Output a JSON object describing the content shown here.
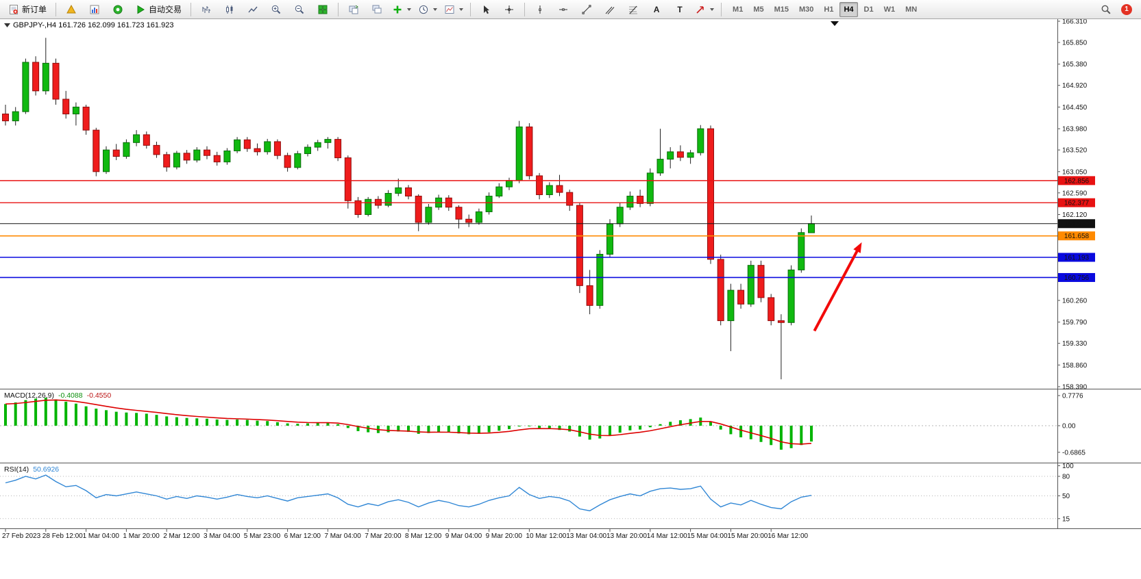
{
  "toolbar": {
    "new_order": "新订单",
    "autotrade": "自动交易",
    "text_tool": "A",
    "label_tool": "T",
    "timeframes": [
      "M1",
      "M5",
      "M15",
      "M30",
      "H1",
      "H4",
      "D1",
      "W1",
      "MN"
    ],
    "active_timeframe": "H4",
    "notification_count": "1"
  },
  "chart": {
    "symbol_line": "GBPJPY-,H4 161.726 162.099 161.723 161.923"
  },
  "colors": {
    "up": "#10b910",
    "up_border": "#0b6b0b",
    "down": "#ef1c1c",
    "down_border": "#8f0d0d",
    "wick": "#222222",
    "macd_hist": "#00b400",
    "macd_signal": "#dd0000",
    "rsi_line": "#2f86d5",
    "badge_text": "#ffffff",
    "arrow": "#f20a0a"
  },
  "chart_data": {
    "type": "candlestick",
    "symbol": "GBPJPY-",
    "timeframe": "H4",
    "current_ohlc": {
      "open": 161.726,
      "high": 162.099,
      "low": 161.723,
      "close": 161.923
    },
    "price_axis": {
      "min": 158.39,
      "max": 166.31,
      "tick_labels": [
        "166.310",
        "165.850",
        "165.380",
        "164.920",
        "164.450",
        "163.980",
        "163.520",
        "163.050",
        "162.590",
        "162.120",
        "160.260",
        "159.790",
        "159.330",
        "158.860",
        "158.390"
      ]
    },
    "time_labels": [
      "27 Feb 2023",
      "28 Feb 12:00",
      "1 Mar 04:00",
      "1 Mar 20:00",
      "2 Mar 12:00",
      "3 Mar 04:00",
      "5 Mar 23:00",
      "6 Mar 12:00",
      "7 Mar 04:00",
      "7 Mar 20:00",
      "8 Mar 12:00",
      "9 Mar 04:00",
      "9 Mar 20:00",
      "10 Mar 12:00",
      "13 Mar 04:00",
      "13 Mar 20:00",
      "14 Mar 12:00",
      "15 Mar 04:00",
      "15 Mar 20:00",
      "16 Mar 12:00"
    ],
    "candles": [
      [
        164.3,
        164.5,
        164.05,
        164.15
      ],
      [
        164.15,
        164.45,
        164.05,
        164.35
      ],
      [
        164.35,
        165.5,
        164.3,
        165.42
      ],
      [
        165.42,
        165.55,
        164.7,
        164.8
      ],
      [
        164.8,
        165.95,
        164.72,
        165.4
      ],
      [
        165.4,
        165.5,
        164.5,
        164.62
      ],
      [
        164.62,
        164.8,
        164.2,
        164.3
      ],
      [
        164.3,
        164.55,
        164.05,
        164.45
      ],
      [
        164.45,
        164.5,
        163.85,
        163.95
      ],
      [
        163.95,
        164.0,
        162.95,
        163.05
      ],
      [
        163.05,
        163.6,
        163.0,
        163.52
      ],
      [
        163.52,
        163.65,
        163.3,
        163.38
      ],
      [
        163.38,
        163.75,
        163.33,
        163.68
      ],
      [
        163.68,
        163.95,
        163.6,
        163.85
      ],
      [
        163.85,
        163.92,
        163.55,
        163.62
      ],
      [
        163.62,
        163.7,
        163.35,
        163.42
      ],
      [
        163.42,
        163.48,
        163.05,
        163.15
      ],
      [
        163.15,
        163.5,
        163.1,
        163.45
      ],
      [
        163.45,
        163.52,
        163.22,
        163.3
      ],
      [
        163.3,
        163.58,
        163.25,
        163.52
      ],
      [
        163.52,
        163.6,
        163.32,
        163.4
      ],
      [
        163.4,
        163.48,
        163.18,
        163.26
      ],
      [
        163.26,
        163.56,
        163.2,
        163.5
      ],
      [
        163.5,
        163.8,
        163.45,
        163.74
      ],
      [
        163.74,
        163.8,
        163.48,
        163.55
      ],
      [
        163.55,
        163.66,
        163.4,
        163.48
      ],
      [
        163.48,
        163.76,
        163.42,
        163.7
      ],
      [
        163.7,
        163.75,
        163.32,
        163.4
      ],
      [
        163.4,
        163.46,
        163.05,
        163.14
      ],
      [
        163.14,
        163.5,
        163.1,
        163.44
      ],
      [
        163.44,
        163.64,
        163.38,
        163.58
      ],
      [
        163.58,
        163.74,
        163.5,
        163.68
      ],
      [
        163.68,
        163.8,
        163.55,
        163.75
      ],
      [
        163.75,
        163.8,
        163.28,
        163.35
      ],
      [
        163.35,
        163.4,
        162.25,
        162.42
      ],
      [
        162.42,
        162.5,
        162.05,
        162.12
      ],
      [
        162.12,
        162.5,
        162.08,
        162.45
      ],
      [
        162.45,
        162.52,
        162.25,
        162.32
      ],
      [
        162.32,
        162.65,
        162.28,
        162.58
      ],
      [
        162.58,
        162.9,
        162.52,
        162.7
      ],
      [
        162.7,
        162.76,
        162.45,
        162.52
      ],
      [
        162.52,
        162.56,
        161.76,
        161.95
      ],
      [
        161.95,
        162.35,
        161.9,
        162.28
      ],
      [
        162.28,
        162.55,
        162.22,
        162.48
      ],
      [
        162.48,
        162.54,
        162.2,
        162.28
      ],
      [
        162.28,
        162.32,
        161.82,
        162.02
      ],
      [
        162.02,
        162.12,
        161.85,
        161.95
      ],
      [
        161.95,
        162.25,
        161.9,
        162.18
      ],
      [
        162.18,
        162.6,
        162.12,
        162.52
      ],
      [
        162.52,
        162.8,
        162.48,
        162.72
      ],
      [
        162.72,
        162.92,
        162.65,
        162.86
      ],
      [
        162.86,
        164.15,
        162.8,
        164.02
      ],
      [
        164.02,
        164.1,
        162.88,
        162.96
      ],
      [
        162.96,
        163.02,
        162.45,
        162.55
      ],
      [
        162.55,
        162.82,
        162.48,
        162.75
      ],
      [
        162.75,
        162.98,
        162.52,
        162.6
      ],
      [
        162.6,
        162.66,
        162.2,
        162.32
      ],
      [
        162.32,
        162.38,
        160.42,
        160.58
      ],
      [
        160.58,
        160.92,
        159.96,
        160.15
      ],
      [
        160.15,
        161.35,
        160.08,
        161.26
      ],
      [
        161.26,
        162.02,
        161.2,
        161.92
      ],
      [
        161.92,
        162.38,
        161.85,
        162.28
      ],
      [
        162.28,
        162.62,
        162.22,
        162.52
      ],
      [
        162.52,
        162.66,
        162.28,
        162.36
      ],
      [
        162.36,
        163.12,
        162.3,
        163.02
      ],
      [
        163.02,
        163.98,
        162.96,
        163.32
      ],
      [
        163.32,
        163.58,
        163.12,
        163.48
      ],
      [
        163.48,
        163.62,
        163.28,
        163.36
      ],
      [
        163.36,
        163.52,
        163.22,
        163.46
      ],
      [
        163.46,
        164.06,
        163.4,
        163.98
      ],
      [
        163.98,
        164.05,
        161.05,
        161.15
      ],
      [
        161.15,
        161.25,
        159.72,
        159.82
      ],
      [
        159.82,
        160.62,
        159.16,
        160.48
      ],
      [
        160.48,
        160.62,
        160.08,
        160.18
      ],
      [
        160.18,
        161.12,
        160.12,
        161.02
      ],
      [
        161.02,
        161.12,
        160.22,
        160.32
      ],
      [
        160.32,
        160.4,
        159.72,
        159.82
      ],
      [
        159.82,
        159.96,
        158.55,
        159.78
      ],
      [
        159.78,
        161.02,
        159.72,
        160.92
      ],
      [
        160.92,
        161.82,
        160.86,
        161.73
      ],
      [
        161.726,
        162.099,
        161.723,
        161.923
      ]
    ],
    "hlines": [
      {
        "price": 162.856,
        "label": "162.856",
        "color": "#e81212",
        "thickness": 1.4
      },
      {
        "price": 162.377,
        "label": "162.377",
        "color": "#e81212",
        "thickness": 1.4
      },
      {
        "price": 161.923,
        "label": "161.923",
        "color": "#111111",
        "thickness": 1
      },
      {
        "price": 161.658,
        "label": "161.658",
        "color": "#ff8a00",
        "thickness": 1.6
      },
      {
        "price": 161.193,
        "label": "161.193",
        "color": "#0a0adf",
        "thickness": 1.6
      },
      {
        "price": 160.756,
        "label": "160.756",
        "color": "#0a0adf",
        "thickness": 1.6
      }
    ],
    "indicators": {
      "macd": {
        "name": "MACD(12,26,9)",
        "value_main": "-0.4088",
        "value_signal": "-0.4550",
        "axis_labels": [
          "0.7776",
          "0.00",
          "-0.6865"
        ],
        "histogram": [
          0.56,
          0.6,
          0.66,
          0.7,
          0.72,
          0.68,
          0.62,
          0.57,
          0.5,
          0.44,
          0.4,
          0.36,
          0.34,
          0.33,
          0.31,
          0.28,
          0.24,
          0.22,
          0.2,
          0.19,
          0.18,
          0.16,
          0.15,
          0.16,
          0.15,
          0.13,
          0.12,
          0.09,
          0.06,
          0.05,
          0.06,
          0.07,
          0.08,
          0.04,
          -0.06,
          -0.14,
          -0.17,
          -0.19,
          -0.17,
          -0.15,
          -0.16,
          -0.21,
          -0.19,
          -0.16,
          -0.17,
          -0.2,
          -0.22,
          -0.21,
          -0.17,
          -0.13,
          -0.09,
          -0.02,
          -0.01,
          -0.06,
          -0.08,
          -0.11,
          -0.15,
          -0.28,
          -0.36,
          -0.33,
          -0.26,
          -0.18,
          -0.12,
          -0.1,
          -0.04,
          0.04,
          0.1,
          0.14,
          0.17,
          0.21,
          0.1,
          -0.1,
          -0.22,
          -0.3,
          -0.35,
          -0.42,
          -0.5,
          -0.62,
          -0.58,
          -0.5,
          -0.4088
        ]
      },
      "rsi": {
        "name": "RSI(14)",
        "value": "50.6926",
        "levels": [
          80,
          50,
          15
        ],
        "axis_labels": [
          "100",
          "80",
          "50",
          "15"
        ],
        "values": [
          70,
          74,
          80,
          76,
          82,
          72,
          64,
          66,
          58,
          47,
          52,
          50,
          53,
          56,
          53,
          50,
          45,
          49,
          46,
          50,
          48,
          45,
          48,
          52,
          49,
          47,
          50,
          46,
          42,
          47,
          49,
          51,
          53,
          47,
          37,
          33,
          38,
          35,
          41,
          44,
          40,
          33,
          39,
          43,
          40,
          35,
          33,
          37,
          43,
          47,
          50,
          63,
          52,
          46,
          49,
          47,
          42,
          30,
          27,
          36,
          44,
          49,
          53,
          50,
          57,
          61,
          62,
          60,
          61,
          65,
          45,
          33,
          39,
          36,
          43,
          37,
          32,
          30,
          41,
          48,
          50.6926
        ]
      }
    },
    "annotations": [
      {
        "type": "arrow",
        "from_bar": 80.3,
        "from_price": 159.6,
        "to_bar": 85.0,
        "to_price": 161.52,
        "color": "#f20a0a"
      }
    ]
  }
}
